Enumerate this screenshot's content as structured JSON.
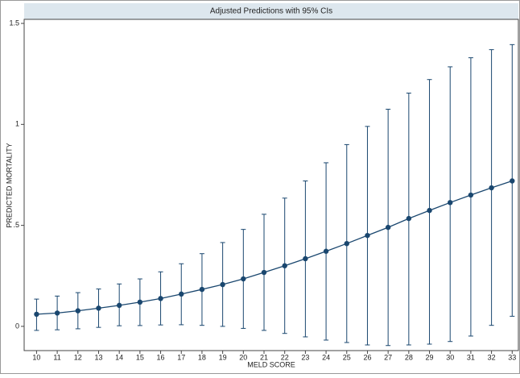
{
  "chart_data": {
    "type": "line",
    "title": "Adjusted Predictions with 95% CIs",
    "x_label": "MELD SCORE",
    "y_label": "PREDICTED MORTALITY",
    "x": [
      10,
      11,
      12,
      13,
      14,
      15,
      16,
      17,
      18,
      19,
      20,
      21,
      22,
      23,
      24,
      25,
      26,
      27,
      28,
      29,
      30,
      31,
      32,
      33
    ],
    "series": [
      {
        "color": "#1a476f",
        "values": [
          0.06,
          0.066,
          0.077,
          0.09,
          0.104,
          0.12,
          0.138,
          0.16,
          0.183,
          0.207,
          0.235,
          0.267,
          0.3,
          0.335,
          0.372,
          0.41,
          0.45,
          0.49,
          0.534,
          0.574,
          0.613,
          0.65,
          0.686,
          0.72
        ],
        "lower": [
          -0.02,
          -0.017,
          -0.012,
          -0.005,
          0.003,
          0.004,
          0.007,
          0.008,
          0.005,
          0.0,
          -0.01,
          -0.02,
          -0.035,
          -0.052,
          -0.068,
          -0.08,
          -0.092,
          -0.095,
          -0.092,
          -0.088,
          -0.075,
          -0.048,
          0.005,
          0.05
        ],
        "upper": [
          0.135,
          0.15,
          0.167,
          0.185,
          0.21,
          0.235,
          0.27,
          0.31,
          0.36,
          0.415,
          0.48,
          0.555,
          0.635,
          0.72,
          0.81,
          0.9,
          0.99,
          1.075,
          1.155,
          1.222,
          1.285,
          1.33,
          1.37,
          1.395
        ]
      }
    ],
    "xlim": [
      9.4,
      33.3
    ],
    "ylim": [
      -0.12,
      1.56
    ],
    "xticks": [
      10,
      11,
      12,
      13,
      14,
      15,
      16,
      17,
      18,
      19,
      20,
      21,
      22,
      23,
      24,
      25,
      26,
      27,
      28,
      29,
      30,
      31,
      32,
      33
    ],
    "yticks": [
      0,
      {
        "value": 0.5,
        "label": ".5"
      },
      1,
      1.5
    ],
    "grid": false
  }
}
